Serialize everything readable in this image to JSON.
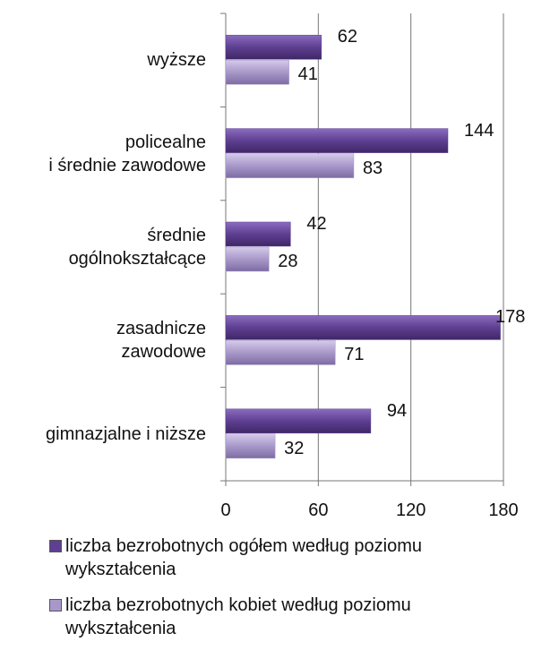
{
  "chart_data": {
    "type": "bar",
    "orientation": "horizontal",
    "categories": [
      "wyższe",
      "policealne\ni średnie zawodowe",
      "średnie\nogólnokształcące",
      "zasadnicze\nzawodowe",
      "gimnazjalne i niższe"
    ],
    "series": [
      {
        "name": "liczba bezrobotnych ogółem według poziomu wykształcenia",
        "color": "#5e3f91",
        "values": [
          62,
          144,
          42,
          178,
          94
        ]
      },
      {
        "name": "liczba bezrobotnych kobiet według poziomu wykształcenia",
        "color": "#a898c9",
        "values": [
          41,
          83,
          28,
          71,
          32
        ]
      }
    ],
    "xlim": [
      0,
      180
    ],
    "xticks": [
      0,
      60,
      120,
      180
    ],
    "grid": true,
    "legend": "bottom"
  }
}
